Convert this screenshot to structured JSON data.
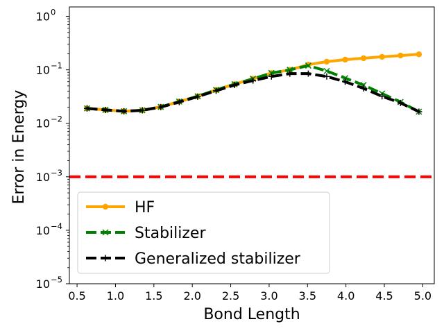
{
  "chart_data": {
    "type": "line",
    "title": "",
    "xlabel": "Bond Length",
    "ylabel": "Error in Energy",
    "xscale": "linear",
    "yscale": "log",
    "xlim": [
      0.4,
      5.15
    ],
    "ylim": [
      1e-05,
      1.5
    ],
    "x_ticks": [
      0.5,
      1.0,
      1.5,
      2.0,
      2.5,
      3.0,
      3.5,
      4.0,
      4.5,
      5.0
    ],
    "x_tick_labels": [
      "0.5",
      "1.0",
      "1.5",
      "2.0",
      "2.5",
      "3.0",
      "3.5",
      "4.0",
      "4.5",
      "5.0"
    ],
    "y_ticks": [
      {
        "value": 1,
        "base": "10",
        "exp": "0"
      },
      {
        "value": 0.1,
        "base": "10",
        "exp": "−1"
      },
      {
        "value": 0.01,
        "base": "10",
        "exp": "−2"
      },
      {
        "value": 0.001,
        "base": "10",
        "exp": "−3"
      },
      {
        "value": 0.0001,
        "base": "10",
        "exp": "−4"
      },
      {
        "value": 1e-05,
        "base": "10",
        "exp": "−5"
      }
    ],
    "grid": false,
    "legend_position": "lower-left",
    "reference_line": {
      "y": 0.001,
      "color": "#ff0000",
      "style": "dashed"
    },
    "series": [
      {
        "name": "HF",
        "color": "#ffa500",
        "line_style": "solid",
        "marker": "circle",
        "x": [
          0.63,
          0.87,
          1.11,
          1.35,
          1.59,
          1.83,
          2.07,
          2.31,
          2.55,
          2.79,
          3.03,
          3.27,
          3.51,
          3.75,
          3.99,
          4.23,
          4.47,
          4.71,
          4.95
        ],
        "values": [
          0.019,
          0.0178,
          0.0168,
          0.0175,
          0.0203,
          0.0255,
          0.032,
          0.042,
          0.054,
          0.068,
          0.087,
          0.1,
          0.125,
          0.142,
          0.155,
          0.165,
          0.175,
          0.185,
          0.195
        ]
      },
      {
        "name": "Stabilizer",
        "color": "#008000",
        "line_style": "dashed",
        "marker": "x",
        "x": [
          0.63,
          0.87,
          1.11,
          1.35,
          1.59,
          1.83,
          2.07,
          2.31,
          2.55,
          2.79,
          3.03,
          3.27,
          3.51,
          3.75,
          3.99,
          4.23,
          4.47,
          4.71,
          4.95
        ],
        "values": [
          0.019,
          0.0178,
          0.0168,
          0.0175,
          0.0203,
          0.0255,
          0.032,
          0.042,
          0.054,
          0.068,
          0.087,
          0.1,
          0.12,
          0.095,
          0.07,
          0.052,
          0.036,
          0.025,
          0.0165
        ]
      },
      {
        "name": "Generalized stabilizer",
        "color": "#000000",
        "line_style": "dashed",
        "marker": "plus",
        "x": [
          0.63,
          0.87,
          1.11,
          1.35,
          1.59,
          1.83,
          2.07,
          2.31,
          2.55,
          2.79,
          3.03,
          3.27,
          3.51,
          3.75,
          3.99,
          4.23,
          4.47,
          4.71,
          4.95
        ],
        "values": [
          0.019,
          0.0178,
          0.0168,
          0.0175,
          0.0201,
          0.025,
          0.0315,
          0.0405,
          0.052,
          0.063,
          0.075,
          0.085,
          0.085,
          0.075,
          0.06,
          0.045,
          0.032,
          0.024,
          0.0165
        ]
      }
    ]
  }
}
